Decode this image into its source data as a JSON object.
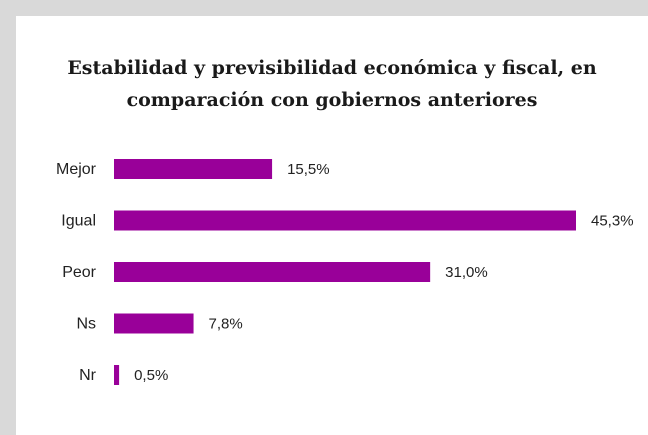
{
  "chart_data": {
    "type": "bar",
    "orientation": "horizontal",
    "title": "Estabilidad y previsibilidad económica y fiscal, en comparación con gobiernos anteriores",
    "categories": [
      "Mejor",
      "Igual",
      "Peor",
      "Ns",
      "Nr"
    ],
    "values": [
      15.5,
      45.3,
      31.0,
      7.8,
      0.5
    ],
    "value_labels": [
      "15,5%",
      "45,3%",
      "31,0%",
      "7,8%",
      "0,5%"
    ],
    "unit": "%",
    "xlim": [
      0,
      45.3
    ],
    "grid": false,
    "legend": "none",
    "bar_color": "#990099"
  }
}
